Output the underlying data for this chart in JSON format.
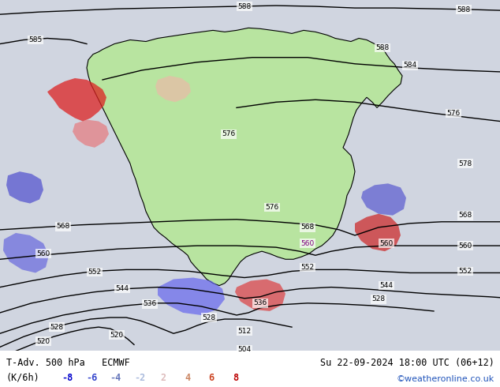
{
  "title_left": "T-Adv. 500 hPa   ECMWF",
  "title_right": "Su 22-09-2024 18:00 UTC (06\"12)",
  "subtitle_left": "(K/6h)",
  "copyright": "©weatheronline.co.uk",
  "legend_values": [
    -8,
    -6,
    -4,
    -2,
    2,
    4,
    6,
    8
  ],
  "neg_colors": [
    "#0000cc",
    "#3344cc",
    "#6677bb",
    "#aabbdd"
  ],
  "pos_colors": [
    "#ddbbbb",
    "#cc8866",
    "#cc4422",
    "#bb0000"
  ],
  "bg_color": "#ffffff",
  "land_color": "#b8e4a0",
  "ocean_color": "#d8dde8",
  "figsize": [
    6.34,
    4.9
  ],
  "dpi": 100,
  "label_fontsize": 9,
  "value_fontsize": 9,
  "title_right_full": "Su 22-09-2024 18:00 UTC (06+12)"
}
